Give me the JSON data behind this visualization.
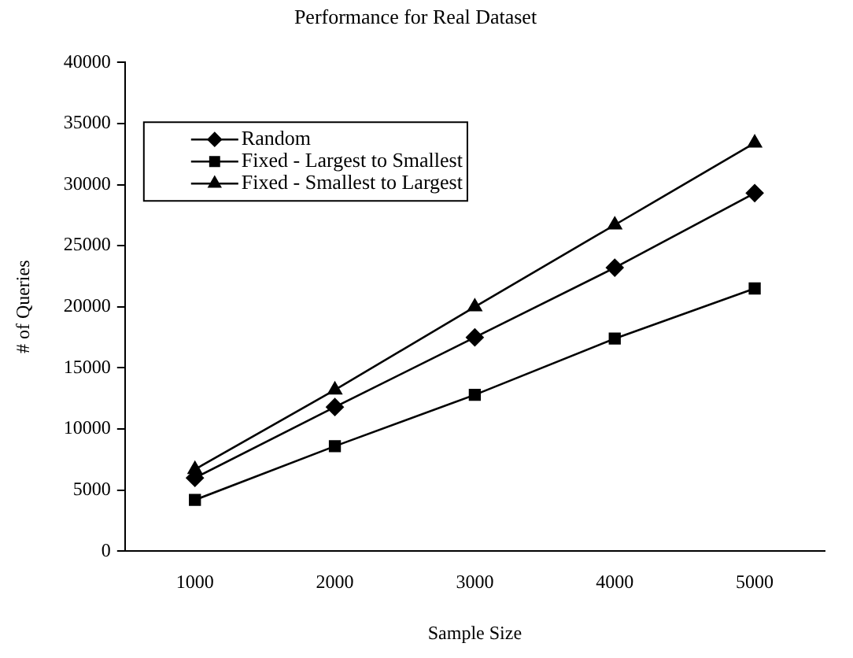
{
  "chart_data": {
    "type": "line",
    "title": "Performance for Real Dataset",
    "xlabel": "Sample Size",
    "ylabel": "# of Queries",
    "categories": [
      "1000",
      "2000",
      "3000",
      "4000",
      "5000"
    ],
    "ylim": [
      0,
      40000
    ],
    "yticks": [
      0,
      5000,
      10000,
      15000,
      20000,
      25000,
      30000,
      35000,
      40000
    ],
    "grid": false,
    "legend": "top left",
    "series": [
      {
        "name": "Random",
        "color": "#000000",
        "marker": "diamond",
        "values": [
          6000,
          11800,
          17500,
          23200,
          29300
        ]
      },
      {
        "name": "Fixed - Largest to Smallest",
        "color": "#000000",
        "marker": "square",
        "values": [
          4200,
          8600,
          12800,
          17400,
          21500
        ]
      },
      {
        "name": "Fixed - Smallest to Largest",
        "color": "#000000",
        "marker": "triangle",
        "values": [
          6700,
          13200,
          20000,
          26700,
          33400
        ]
      }
    ]
  }
}
